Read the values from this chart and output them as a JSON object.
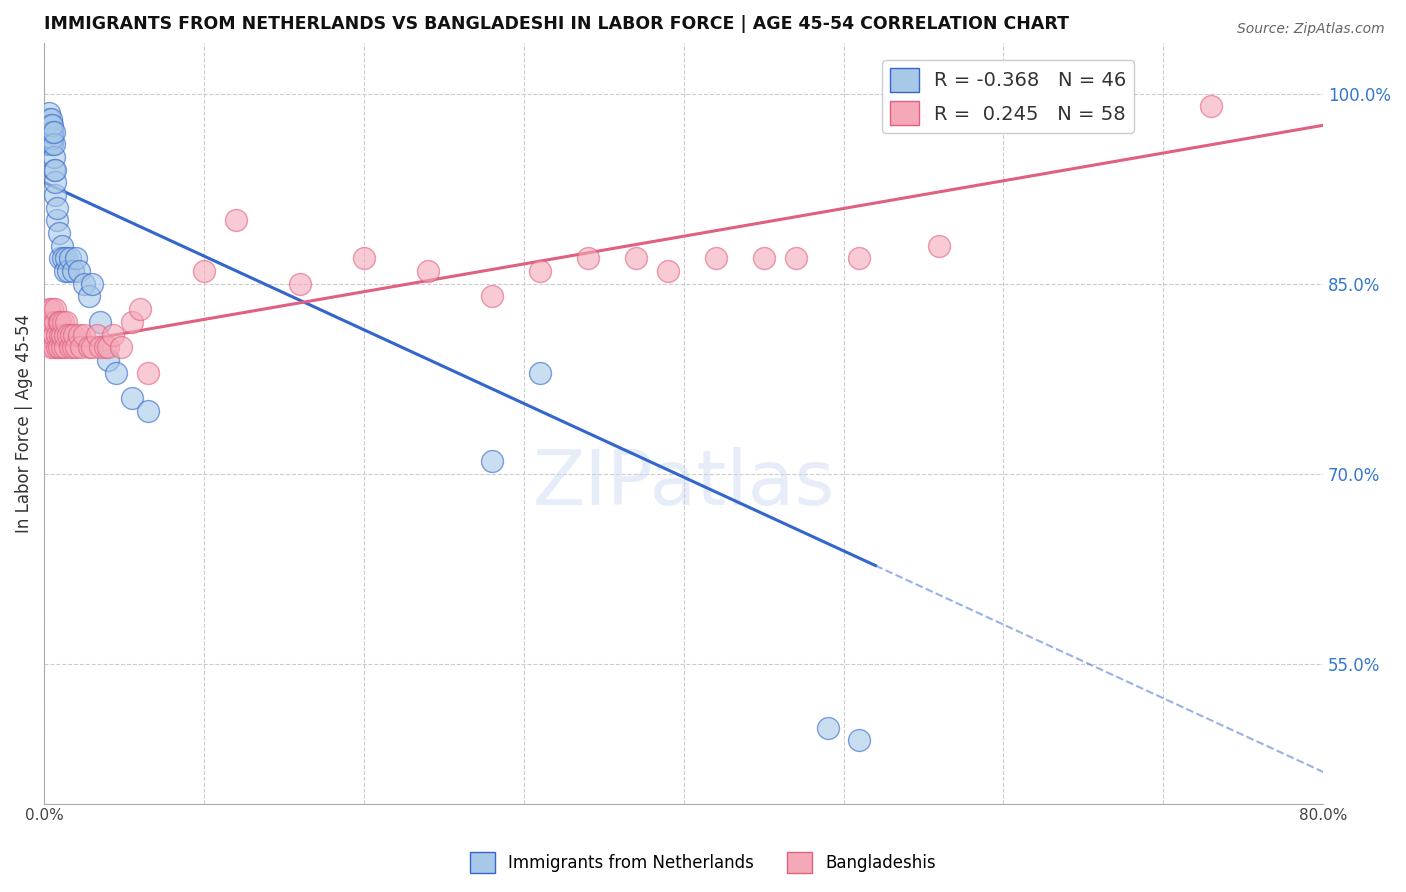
{
  "title": "IMMIGRANTS FROM NETHERLANDS VS BANGLADESHI IN LABOR FORCE | AGE 45-54 CORRELATION CHART",
  "source": "Source: ZipAtlas.com",
  "ylabel": "In Labor Force | Age 45-54",
  "xlim": [
    0.0,
    0.8
  ],
  "ylim": [
    0.44,
    1.04
  ],
  "xticks": [
    0.0,
    0.1,
    0.2,
    0.3,
    0.4,
    0.5,
    0.6,
    0.7,
    0.8
  ],
  "yticks_right": [
    0.55,
    0.7,
    0.85,
    1.0
  ],
  "yticklabels_right": [
    "55.0%",
    "70.0%",
    "85.0%",
    "100.0%"
  ],
  "blue_R": "-0.368",
  "blue_N": "46",
  "pink_R": "0.245",
  "pink_N": "58",
  "blue_color": "#A8C8E8",
  "pink_color": "#F4A8B8",
  "blue_line_color": "#3366CC",
  "pink_line_color": "#E06080",
  "watermark": "ZIPatlas",
  "legend_label_blue": "Immigrants from Netherlands",
  "legend_label_pink": "Bangladeshis",
  "blue_scatter_x": [
    0.002,
    0.002,
    0.003,
    0.003,
    0.003,
    0.004,
    0.004,
    0.004,
    0.004,
    0.004,
    0.005,
    0.005,
    0.005,
    0.005,
    0.006,
    0.006,
    0.006,
    0.006,
    0.007,
    0.007,
    0.007,
    0.008,
    0.008,
    0.009,
    0.01,
    0.011,
    0.012,
    0.013,
    0.014,
    0.015,
    0.016,
    0.018,
    0.02,
    0.022,
    0.025,
    0.028,
    0.03,
    0.035,
    0.04,
    0.045,
    0.055,
    0.065,
    0.28,
    0.31,
    0.49,
    0.51
  ],
  "blue_scatter_y": [
    0.96,
    0.97,
    0.975,
    0.98,
    0.985,
    0.96,
    0.965,
    0.97,
    0.975,
    0.98,
    0.96,
    0.965,
    0.97,
    0.975,
    0.94,
    0.95,
    0.96,
    0.97,
    0.92,
    0.93,
    0.94,
    0.9,
    0.91,
    0.89,
    0.87,
    0.88,
    0.87,
    0.86,
    0.87,
    0.86,
    0.87,
    0.86,
    0.87,
    0.86,
    0.85,
    0.84,
    0.85,
    0.82,
    0.79,
    0.78,
    0.76,
    0.75,
    0.71,
    0.78,
    0.5,
    0.49
  ],
  "pink_scatter_x": [
    0.002,
    0.003,
    0.003,
    0.004,
    0.005,
    0.005,
    0.006,
    0.006,
    0.007,
    0.007,
    0.008,
    0.008,
    0.009,
    0.009,
    0.01,
    0.01,
    0.011,
    0.011,
    0.012,
    0.013,
    0.013,
    0.014,
    0.015,
    0.016,
    0.017,
    0.018,
    0.019,
    0.02,
    0.022,
    0.023,
    0.025,
    0.028,
    0.03,
    0.033,
    0.035,
    0.038,
    0.04,
    0.043,
    0.048,
    0.055,
    0.06,
    0.065,
    0.1,
    0.12,
    0.16,
    0.2,
    0.24,
    0.28,
    0.31,
    0.34,
    0.37,
    0.39,
    0.42,
    0.45,
    0.47,
    0.51,
    0.56,
    0.73
  ],
  "pink_scatter_y": [
    0.82,
    0.81,
    0.83,
    0.8,
    0.82,
    0.83,
    0.8,
    0.81,
    0.82,
    0.83,
    0.8,
    0.81,
    0.82,
    0.8,
    0.81,
    0.82,
    0.8,
    0.81,
    0.82,
    0.8,
    0.81,
    0.82,
    0.81,
    0.8,
    0.81,
    0.8,
    0.81,
    0.8,
    0.81,
    0.8,
    0.81,
    0.8,
    0.8,
    0.81,
    0.8,
    0.8,
    0.8,
    0.81,
    0.8,
    0.82,
    0.83,
    0.78,
    0.86,
    0.9,
    0.85,
    0.87,
    0.86,
    0.84,
    0.86,
    0.87,
    0.87,
    0.86,
    0.87,
    0.87,
    0.87,
    0.87,
    0.88,
    0.99
  ],
  "blue_trend_x0": 0.0,
  "blue_trend_y0": 0.93,
  "blue_trend_x1": 0.8,
  "blue_trend_y1": 0.465,
  "blue_trend_solid_end": 0.52,
  "pink_trend_x0": 0.0,
  "pink_trend_y0": 0.8,
  "pink_trend_x1": 0.8,
  "pink_trend_y1": 0.975
}
